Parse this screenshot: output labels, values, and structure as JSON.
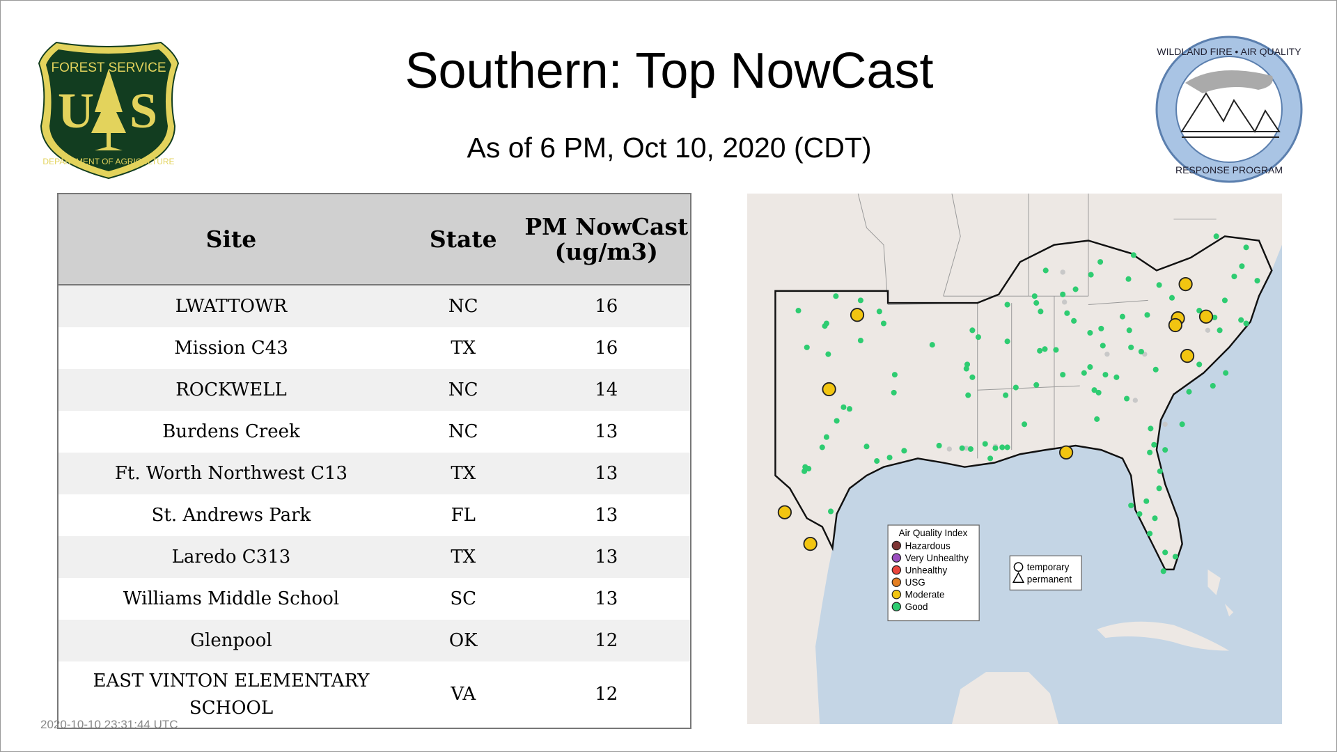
{
  "header": {
    "title": "Southern: Top NowCast",
    "subtitle": "As of  6 PM, Oct 10, 2020 (CDT)"
  },
  "logos": {
    "left": "Forest Service US Department of Agriculture",
    "right": "Wildland Fire Air Quality Response Program"
  },
  "table": {
    "columns": [
      "Site",
      "State",
      "PM NowCast (ug/m3)"
    ],
    "rows": [
      {
        "site": "LWATTOWR",
        "state": "NC",
        "value": "16"
      },
      {
        "site": "Mission C43",
        "state": "TX",
        "value": "16"
      },
      {
        "site": "ROCKWELL",
        "state": "NC",
        "value": "14"
      },
      {
        "site": "Burdens Creek",
        "state": "NC",
        "value": "13"
      },
      {
        "site": "Ft. Worth Northwest C13",
        "state": "TX",
        "value": "13"
      },
      {
        "site": "St. Andrews Park",
        "state": "FL",
        "value": "13"
      },
      {
        "site": "Laredo C313",
        "state": "TX",
        "value": "13"
      },
      {
        "site": "Williams Middle School",
        "state": "SC",
        "value": "13"
      },
      {
        "site": "Glenpool",
        "state": "OK",
        "value": "12"
      },
      {
        "site": "EAST VINTON ELEMENTARY SCHOOL",
        "state": "VA",
        "value": "12"
      }
    ]
  },
  "legend": {
    "title": "Air Quality Index",
    "items": [
      {
        "label": "Hazardous",
        "color": "#7e3535"
      },
      {
        "label": "Very Unhealthy",
        "color": "#9b4fc0"
      },
      {
        "label": "Unhealthy",
        "color": "#e8453c"
      },
      {
        "label": "USG",
        "color": "#e47f22"
      },
      {
        "label": "Moderate",
        "color": "#f2c511"
      },
      {
        "label": "Good",
        "color": "#2ecc71"
      }
    ],
    "shapes": [
      {
        "label": "temporary",
        "icon": "circle-icon"
      },
      {
        "label": "permanent",
        "icon": "triangle-icon"
      }
    ]
  },
  "colors": {
    "ocean": "#c4d5e5",
    "land": "#ede8e4",
    "good": "#2ecc71",
    "moderate": "#f2c511",
    "inactive": "#c8c8c8"
  },
  "timestamp": "2020-10-10 23:31:44 UTC"
}
